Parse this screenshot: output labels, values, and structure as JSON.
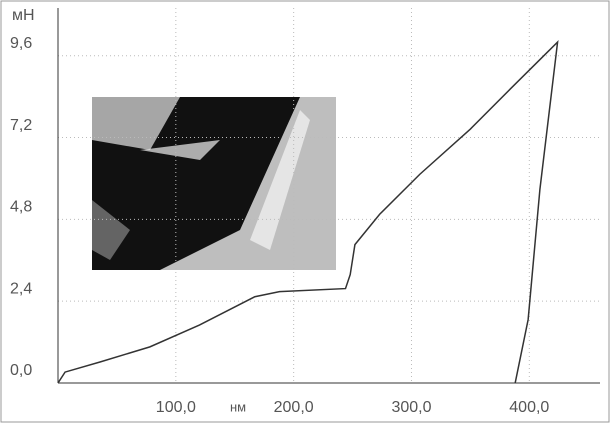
{
  "chart_data": {
    "type": "line",
    "y_label": "мН",
    "x_label": "нм",
    "x": [
      0,
      6,
      36,
      78,
      120,
      167,
      188,
      244,
      248,
      252,
      273,
      307,
      350,
      384,
      424,
      409,
      399,
      388
    ],
    "values": [
      0,
      0.32,
      0.62,
      1.06,
      1.7,
      2.53,
      2.68,
      2.77,
      3.18,
      4.06,
      4.95,
      6.12,
      7.45,
      8.63,
      10.0,
      5.68,
      1.86,
      0
    ],
    "color": "#333333",
    "xlim": [
      0,
      460
    ],
    "ylim": [
      0,
      11
    ],
    "xticks": [
      {
        "value": 100,
        "label": "100,0"
      },
      {
        "value": 200,
        "label": "200,0"
      },
      {
        "value": 300,
        "label": "300,0"
      },
      {
        "value": 400,
        "label": "400,0"
      }
    ],
    "yticks": [
      {
        "value": 0,
        "label": "0,0"
      },
      {
        "value": 2.4,
        "label": "2,4"
      },
      {
        "value": 4.8,
        "label": "4,8"
      },
      {
        "value": 7.2,
        "label": "7,2"
      },
      {
        "value": 9.6,
        "label": "9,6"
      }
    ],
    "grid": true
  }
}
